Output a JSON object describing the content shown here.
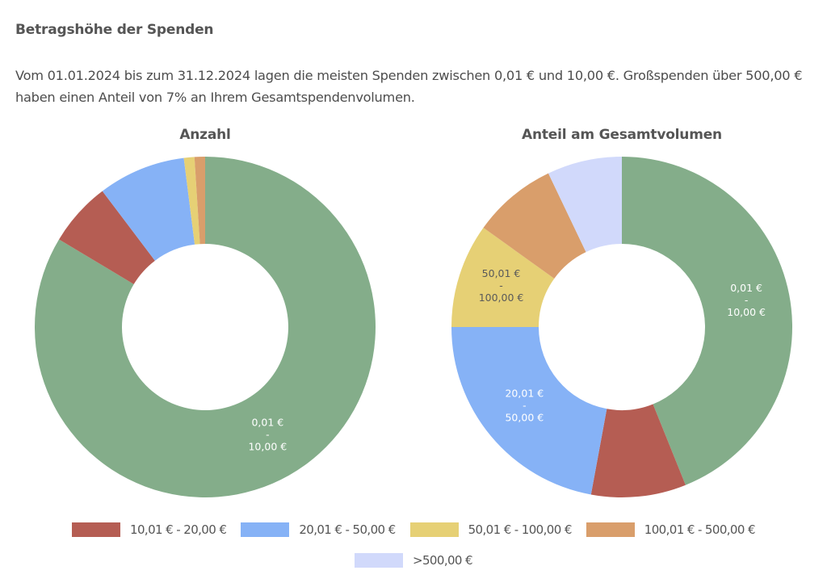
{
  "header": {
    "title": "Betragshöhe der Spenden",
    "description": "Vom 01.01.2024 bis zum 31.12.2024 lagen die meisten Spenden zwischen 0,01 € und 10,00 €. Großspenden über 500,00 € haben einen Anteil von 7% an Ihrem Gesamtspendenvolumen."
  },
  "categories": [
    {
      "key": "c1",
      "label": "0,01 € - 10,00 €",
      "label_top": "0,01 €",
      "label_bottom": "10,00 €",
      "color": "#84ad8a",
      "in_legend": false
    },
    {
      "key": "c2",
      "label": "10,01 € - 20,00 €",
      "label_top": "10,01 €",
      "label_bottom": "20,00 €",
      "color": "#b55d53",
      "in_legend": true
    },
    {
      "key": "c3",
      "label": "20,01 € - 50,00 €",
      "label_top": "20,01 €",
      "label_bottom": "50,00 €",
      "color": "#86b2f6",
      "in_legend": true
    },
    {
      "key": "c4",
      "label": "50,01 € - 100,00 €",
      "label_top": "50,01 €",
      "label_bottom": "100,00 €",
      "color": "#e6d075",
      "in_legend": true
    },
    {
      "key": "c5",
      "label": "100,01 € - 500,00 €",
      "label_top": "100,01 €",
      "label_bottom": "500,00 €",
      "color": "#d99e6b",
      "in_legend": true
    },
    {
      "key": "c6",
      "label": ">500,00 €",
      "label_top": ">500,00 €",
      "label_bottom": "",
      "color": "#d1d9fb",
      "in_legend": true
    }
  ],
  "chart_data": [
    {
      "type": "pie",
      "variant": "donut",
      "title": "Anzahl",
      "categories": [
        "0,01 € - 10,00 €",
        "10,01 € - 20,00 €",
        "20,01 € - 50,00 €",
        "50,01 € - 100,00 €",
        "100,01 € - 500,00 €",
        ">500,00 €"
      ],
      "values": [
        83.6,
        6.1,
        8.3,
        1.0,
        1.0,
        0.0
      ],
      "unit": "percent (estimated)",
      "shown_labels": [
        0
      ]
    },
    {
      "type": "pie",
      "variant": "donut",
      "title": "Anteil am Gesamtvolumen",
      "categories": [
        "0,01 € - 10,00 €",
        "10,01 € - 20,00 €",
        "20,01 € - 50,00 €",
        "50,01 € - 100,00 €",
        "100,01 € - 500,00 €",
        ">500,00 €"
      ],
      "values": [
        43.9,
        9.0,
        22.1,
        9.9,
        8.0,
        7.1
      ],
      "unit": "percent (estimated)",
      "shown_labels": [
        0,
        2,
        3
      ]
    }
  ],
  "legend": {
    "placement": "bottom"
  }
}
